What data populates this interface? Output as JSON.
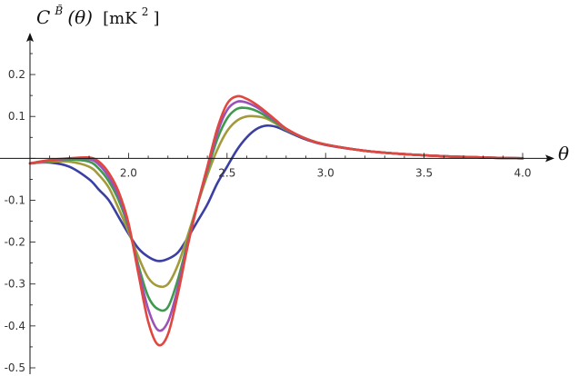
{
  "chart_data": {
    "type": "line",
    "title": "",
    "xlabel": "θ",
    "ylabel": {
      "base": "C",
      "superscript": "B̃",
      "arg": "(θ)",
      "units_open": "[mK",
      "units_exp": "2",
      "units_close": "]"
    },
    "xlim": [
      1.5,
      4.0
    ],
    "ylim": [
      -0.5,
      0.25
    ],
    "x_ticks": [
      {
        "value": 2.0,
        "label": "2.0"
      },
      {
        "value": 2.5,
        "label": "2.5"
      },
      {
        "value": 3.0,
        "label": "3.0"
      },
      {
        "value": 3.5,
        "label": "3.5"
      },
      {
        "value": 4.0,
        "label": "4.0"
      }
    ],
    "y_ticks": [
      {
        "value": 0.2,
        "label": "0.2"
      },
      {
        "value": 0.1,
        "label": "0.1"
      },
      {
        "value": -0.1,
        "label": "-0.1"
      },
      {
        "value": -0.2,
        "label": "-0.2"
      },
      {
        "value": -0.3,
        "label": "-0.3"
      },
      {
        "value": -0.4,
        "label": "-0.4"
      },
      {
        "value": -0.5,
        "label": "-0.5"
      }
    ],
    "grid": false,
    "legend": "none",
    "x": [
      1.5,
      1.6,
      1.7,
      1.8,
      1.85,
      1.9,
      1.95,
      2.0,
      2.05,
      2.1,
      2.15,
      2.2,
      2.25,
      2.3,
      2.35,
      2.4,
      2.45,
      2.5,
      2.55,
      2.6,
      2.65,
      2.7,
      2.75,
      2.8,
      2.9,
      3.0,
      3.2,
      3.4,
      3.6,
      3.8,
      4.0
    ],
    "series": [
      {
        "color": "#3b3fa3",
        "values": [
          -0.012,
          -0.01,
          -0.02,
          -0.05,
          -0.075,
          -0.1,
          -0.14,
          -0.18,
          -0.215,
          -0.235,
          -0.245,
          -0.24,
          -0.225,
          -0.19,
          -0.15,
          -0.11,
          -0.06,
          -0.02,
          0.02,
          0.05,
          0.07,
          0.078,
          0.075,
          0.065,
          0.045,
          0.032,
          0.018,
          0.01,
          0.005,
          0.002,
          0.0
        ]
      },
      {
        "color": "#a59a3a",
        "values": [
          -0.012,
          -0.008,
          -0.008,
          -0.02,
          -0.04,
          -0.07,
          -0.12,
          -0.175,
          -0.235,
          -0.285,
          -0.305,
          -0.3,
          -0.255,
          -0.185,
          -0.11,
          -0.04,
          0.02,
          0.065,
          0.09,
          0.1,
          0.1,
          0.095,
          0.082,
          0.068,
          0.047,
          0.033,
          0.018,
          0.01,
          0.005,
          0.002,
          0.0
        ]
      },
      {
        "color": "#3f9a4f",
        "values": [
          -0.012,
          -0.006,
          -0.003,
          -0.008,
          -0.025,
          -0.055,
          -0.1,
          -0.165,
          -0.255,
          -0.33,
          -0.36,
          -0.355,
          -0.29,
          -0.2,
          -0.11,
          -0.03,
          0.045,
          0.095,
          0.118,
          0.12,
          0.113,
          0.1,
          0.085,
          0.069,
          0.047,
          0.033,
          0.018,
          0.01,
          0.005,
          0.002,
          0.0
        ]
      },
      {
        "color": "#9a52b8",
        "values": [
          -0.012,
          -0.005,
          -0.001,
          -0.002,
          -0.015,
          -0.045,
          -0.09,
          -0.16,
          -0.265,
          -0.36,
          -0.41,
          -0.39,
          -0.31,
          -0.205,
          -0.11,
          -0.025,
          0.06,
          0.115,
          0.135,
          0.133,
          0.122,
          0.106,
          0.088,
          0.07,
          0.047,
          0.033,
          0.018,
          0.01,
          0.005,
          0.002,
          0.0
        ]
      },
      {
        "color": "#e0473f",
        "values": [
          -0.012,
          -0.004,
          0.0,
          0.002,
          -0.008,
          -0.035,
          -0.08,
          -0.155,
          -0.275,
          -0.39,
          -0.445,
          -0.42,
          -0.325,
          -0.21,
          -0.11,
          -0.02,
          0.07,
          0.13,
          0.148,
          0.142,
          0.128,
          0.11,
          0.09,
          0.071,
          0.047,
          0.033,
          0.018,
          0.01,
          0.005,
          0.002,
          0.0
        ]
      }
    ]
  }
}
